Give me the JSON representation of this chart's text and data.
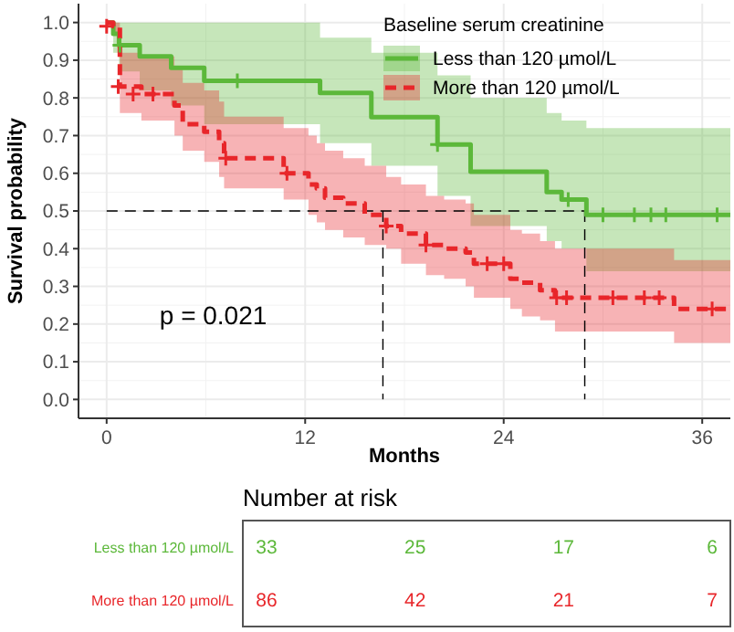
{
  "chart_data": [
    {
      "type": "step",
      "xlabel": "Months",
      "ylabel": "Survival probability",
      "legend_title": "Baseline serum creatinine",
      "legend": "top right",
      "grid": true,
      "xlim": [
        -1.7,
        37.7
      ],
      "xticks": [
        0,
        12,
        24,
        36
      ],
      "ylim": [
        -0.05,
        1.05
      ],
      "yticks": [
        {
          "value": 0,
          "label": "0.0"
        },
        {
          "value": 0.1,
          "label": "0.1"
        },
        {
          "value": 0.2,
          "label": "0.2"
        },
        {
          "value": 0.3,
          "label": "0.3"
        },
        {
          "value": 0.4,
          "label": "0.4"
        },
        {
          "value": 0.5,
          "label": "0.5"
        },
        {
          "value": 0.6,
          "label": "0.6"
        },
        {
          "value": 0.7,
          "label": "0.7"
        },
        {
          "value": 0.8,
          "label": "0.8"
        },
        {
          "value": 0.9,
          "label": "0.9"
        },
        {
          "value": 1,
          "label": "1.0"
        }
      ],
      "series": [
        {
          "name": "Less than 120 µmol/L",
          "color": "#5cb83a",
          "line_style": "solid",
          "x": [
            0,
            0.4,
            0.75,
            2,
            3.9,
            5.9,
            12.9,
            16,
            20,
            22,
            26.6,
            27.5,
            29,
            37.7
          ],
          "values": [
            1.0,
            0.97,
            0.94,
            0.91,
            0.88,
            0.845,
            0.813,
            0.749,
            0.676,
            0.604,
            0.55,
            0.53,
            0.49,
            0.49
          ],
          "upper": [
            1.0,
            1.0,
            1.0,
            1.0,
            1.0,
            1.0,
            0.96,
            0.92,
            0.86,
            0.8,
            0.76,
            0.74,
            0.72,
            0.72
          ],
          "lower": [
            1.0,
            0.92,
            0.87,
            0.82,
            0.78,
            0.73,
            0.68,
            0.62,
            0.54,
            0.46,
            0.42,
            0.4,
            0.34,
            0.34
          ]
        },
        {
          "name": "More than 120 µmol/L",
          "color": "#e8262a",
          "line_style": "dashed",
          "x": [
            0,
            0.4,
            0.8,
            2.1,
            4.1,
            4.6,
            5.9,
            6.8,
            7.1,
            10.7,
            12.2,
            12.7,
            13.2,
            14.3,
            15.6,
            16.9,
            17.8,
            19.3,
            20.4,
            21.7,
            22.2,
            24.4,
            25.1,
            26.2,
            27.1,
            34.3,
            37.7
          ],
          "values": [
            1.0,
            0.99,
            0.83,
            0.81,
            0.78,
            0.73,
            0.71,
            0.68,
            0.64,
            0.6,
            0.57,
            0.56,
            0.535,
            0.52,
            0.49,
            0.46,
            0.44,
            0.41,
            0.4,
            0.39,
            0.36,
            0.32,
            0.31,
            0.29,
            0.27,
            0.24,
            0.24
          ],
          "upper": [
            1.0,
            1.0,
            0.92,
            0.91,
            0.88,
            0.84,
            0.82,
            0.79,
            0.75,
            0.72,
            0.7,
            0.68,
            0.66,
            0.64,
            0.62,
            0.59,
            0.57,
            0.54,
            0.53,
            0.52,
            0.49,
            0.45,
            0.44,
            0.42,
            0.4,
            0.37,
            0.37
          ],
          "lower": [
            1.0,
            0.97,
            0.76,
            0.74,
            0.7,
            0.66,
            0.63,
            0.59,
            0.56,
            0.53,
            0.49,
            0.47,
            0.45,
            0.43,
            0.41,
            0.4,
            0.36,
            0.33,
            0.32,
            0.3,
            0.27,
            0.24,
            0.22,
            0.21,
            0.18,
            0.15,
            0.15
          ]
        },
        {
          "type": "scatter",
          "marker": "cross",
          "color": "#5cb83a",
          "x": [
            0.8,
            7.9,
            20,
            27.9,
            30,
            31.9,
            32.9,
            33.8,
            36.9
          ],
          "values": [
            0.94,
            0.845,
            0.676,
            0.53,
            0.49,
            0.49,
            0.49,
            0.49,
            0.49
          ]
        },
        {
          "type": "scatter",
          "marker": "cross",
          "color": "#e8262a",
          "x": [
            0,
            0.7,
            1.6,
            2.8,
            7.2,
            10.9,
            16.9,
            19.3,
            23,
            24,
            27.2,
            27.8,
            30.6,
            32.5,
            33.4,
            36.6
          ],
          "values": [
            0.99,
            0.83,
            0.81,
            0.81,
            0.64,
            0.6,
            0.46,
            0.41,
            0.36,
            0.36,
            0.27,
            0.27,
            0.27,
            0.27,
            0.27,
            0.24
          ]
        }
      ],
      "ref_lines": [
        {
          "axis": "y",
          "value": 0.5,
          "line_style": "dashed"
        },
        {
          "axis": "x",
          "value": 16.7,
          "line_style": "dashed"
        },
        {
          "axis": "x",
          "value": 28.9,
          "line_style": "dashed"
        }
      ],
      "annotations": [
        "p = 0.021"
      ]
    },
    {
      "type": "other",
      "title": "Number at risk",
      "annotations": [
        "Less than 120 µmol/L",
        "33",
        "25",
        "17",
        "6",
        "More than 120 µmol/L",
        "86",
        "42",
        "21",
        "7"
      ]
    }
  ]
}
